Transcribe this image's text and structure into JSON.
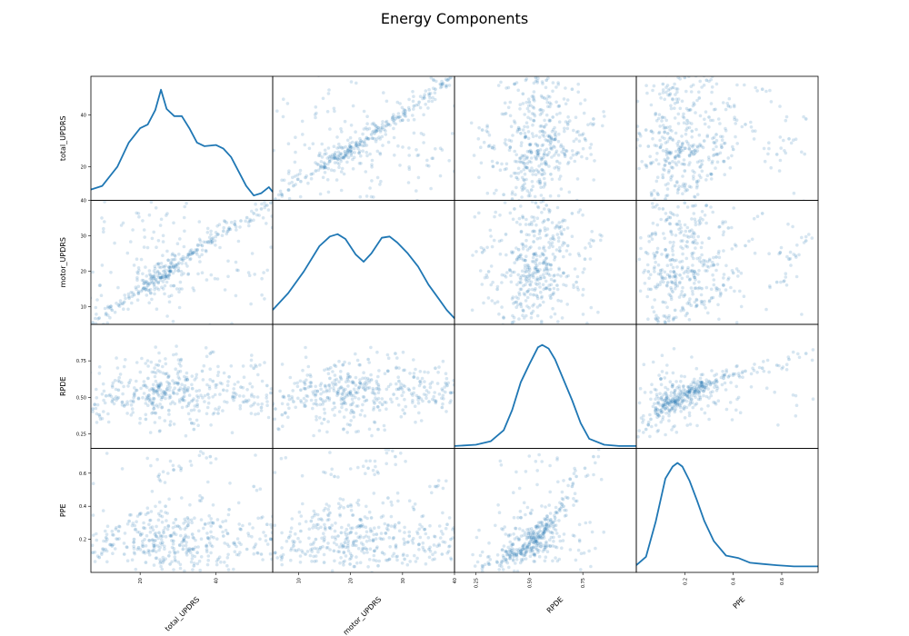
{
  "chart_data": {
    "type": "scatter-matrix",
    "title": "Energy Components",
    "variables": [
      "total_UPDRS",
      "motor_UPDRS",
      "RPDE",
      "PPE"
    ],
    "color": "#1f77b4",
    "diagonal": "kde",
    "ranges": {
      "total_UPDRS": [
        7,
        55
      ],
      "motor_UPDRS": [
        5,
        40
      ],
      "RPDE": [
        0.15,
        1.0
      ],
      "PPE": [
        0.0,
        0.75
      ]
    },
    "row_ticks": {
      "total_UPDRS": [
        "20",
        "40"
      ],
      "motor_UPDRS": [
        "10",
        "20",
        "30",
        "40"
      ],
      "RPDE": [
        "0.25",
        "0.50",
        "0.75"
      ],
      "PPE": [
        "0.2",
        "0.4",
        "0.6"
      ]
    },
    "col_ticks": {
      "total_UPDRS": [
        "20",
        "40"
      ],
      "motor_UPDRS": [
        "10",
        "20",
        "30",
        "40"
      ],
      "RPDE": [
        "0.25",
        "0.50",
        "0.75"
      ],
      "PPE": [
        "0.2",
        "0.4",
        "0.6"
      ]
    },
    "kde": {
      "total_UPDRS": {
        "x": [
          7,
          10,
          14,
          17,
          20,
          22,
          24,
          25.5,
          27,
          29,
          31,
          33,
          35,
          37,
          40,
          42,
          44,
          46,
          48,
          50,
          52,
          54,
          55
        ],
        "y": [
          0.09,
          0.12,
          0.28,
          0.48,
          0.6,
          0.63,
          0.75,
          0.92,
          0.76,
          0.7,
          0.7,
          0.6,
          0.48,
          0.45,
          0.46,
          0.43,
          0.36,
          0.24,
          0.12,
          0.04,
          0.06,
          0.11,
          0.07
        ]
      },
      "motor_UPDRS": {
        "x": [
          5,
          8,
          11,
          14,
          16,
          17.5,
          19,
          21,
          22.5,
          24,
          26,
          27.5,
          29,
          31,
          33,
          35,
          37,
          38.5,
          40
        ],
        "y": [
          0.12,
          0.26,
          0.44,
          0.65,
          0.73,
          0.75,
          0.71,
          0.58,
          0.52,
          0.59,
          0.72,
          0.73,
          0.68,
          0.59,
          0.48,
          0.33,
          0.21,
          0.12,
          0.05
        ]
      },
      "RPDE": {
        "x": [
          0.15,
          0.25,
          0.32,
          0.38,
          0.42,
          0.46,
          0.5,
          0.54,
          0.56,
          0.59,
          0.62,
          0.66,
          0.7,
          0.74,
          0.78,
          0.85,
          0.92,
          1.0
        ],
        "y": [
          0.02,
          0.03,
          0.06,
          0.15,
          0.32,
          0.55,
          0.7,
          0.84,
          0.86,
          0.83,
          0.74,
          0.57,
          0.4,
          0.21,
          0.08,
          0.03,
          0.02,
          0.02
        ]
      },
      "PPE": {
        "x": [
          0.0,
          0.04,
          0.08,
          0.12,
          0.15,
          0.17,
          0.19,
          0.22,
          0.25,
          0.28,
          0.32,
          0.37,
          0.42,
          0.47,
          0.52,
          0.58,
          0.65,
          0.75
        ],
        "y": [
          0.06,
          0.13,
          0.42,
          0.78,
          0.88,
          0.91,
          0.88,
          0.76,
          0.6,
          0.43,
          0.26,
          0.14,
          0.12,
          0.08,
          0.07,
          0.06,
          0.05,
          0.05
        ]
      }
    },
    "scatter_samples": {
      "total_UPDRS": [
        7.5,
        9.2,
        11.0,
        12.6,
        14.3,
        15.8,
        17.1,
        18.4,
        19.6,
        20.9,
        22.1,
        23.3,
        24.2,
        25.0,
        25.9,
        26.7,
        27.6,
        28.8,
        30.0,
        31.3,
        32.5,
        33.8,
        35.1,
        36.4,
        37.9,
        39.2,
        40.6,
        42.0,
        43.5,
        45.0,
        46.6,
        48.2,
        50.0,
        52.0,
        53.5,
        54.5,
        21.5,
        24.8,
        27.9,
        30.8,
        34.2,
        38.5,
        26.2,
        23.7,
        29.4,
        32.9
      ],
      "motor_UPDRS": [
        5.5,
        6.8,
        8.1,
        9.0,
        10.4,
        11.3,
        12.4,
        13.3,
        14.2,
        15.1,
        16.0,
        16.8,
        17.6,
        18.2,
        18.9,
        19.5,
        20.2,
        21.1,
        22.0,
        23.1,
        24.0,
        25.0,
        26.1,
        27.2,
        28.3,
        29.3,
        30.4,
        31.3,
        32.2,
        33.2,
        34.2,
        35.1,
        36.3,
        37.6,
        38.6,
        39.3,
        14.9,
        16.9,
        19.9,
        23.4,
        25.3,
        28.6,
        20.0,
        18.5,
        21.8,
        24.6
      ],
      "RPDE": [
        0.42,
        0.38,
        0.51,
        0.47,
        0.55,
        0.44,
        0.6,
        0.52,
        0.49,
        0.58,
        0.63,
        0.46,
        0.54,
        0.57,
        0.5,
        0.66,
        0.41,
        0.53,
        0.59,
        0.48,
        0.62,
        0.56,
        0.45,
        0.68,
        0.52,
        0.61,
        0.39,
        0.55,
        0.64,
        0.5,
        0.57,
        0.47,
        0.7,
        0.43,
        0.58,
        0.53,
        0.35,
        0.72,
        0.31,
        0.76,
        0.28,
        0.8,
        0.54,
        0.49,
        0.6,
        0.46
      ],
      "PPE": [
        0.12,
        0.09,
        0.21,
        0.16,
        0.25,
        0.11,
        0.31,
        0.2,
        0.15,
        0.27,
        0.36,
        0.13,
        0.22,
        0.24,
        0.18,
        0.4,
        0.1,
        0.19,
        0.28,
        0.14,
        0.33,
        0.23,
        0.12,
        0.45,
        0.21,
        0.3,
        0.08,
        0.22,
        0.38,
        0.17,
        0.26,
        0.14,
        0.52,
        0.11,
        0.29,
        0.2,
        0.06,
        0.58,
        0.05,
        0.63,
        0.04,
        0.7,
        0.24,
        0.16,
        0.32,
        0.13
      ]
    }
  }
}
